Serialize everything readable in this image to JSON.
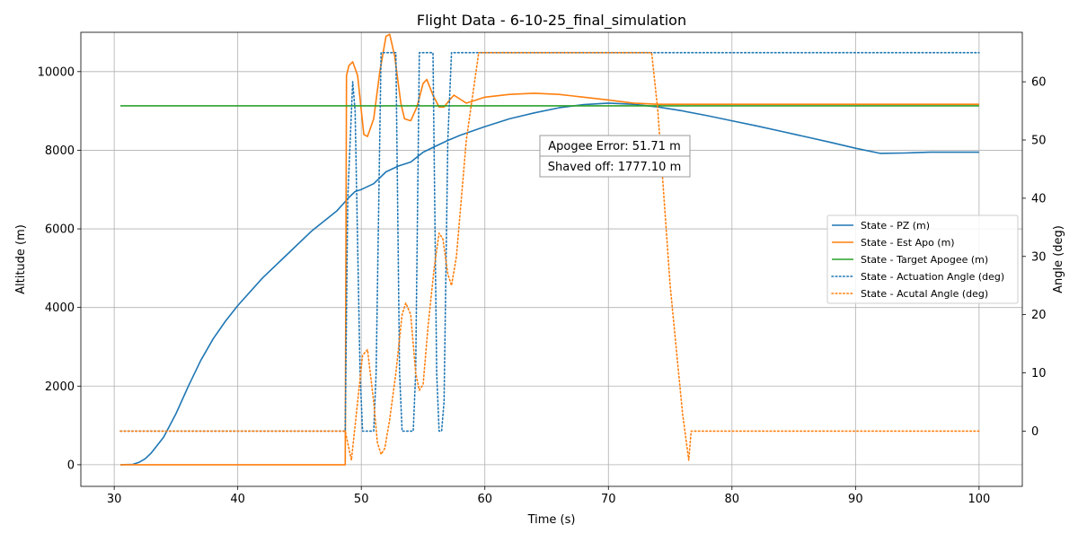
{
  "chart_data": {
    "type": "line",
    "title": "Flight Data - 6-10-25_final_simulation",
    "xlabel": "Time (s)",
    "ylabel": "Altitude (m)",
    "y2label": "Angle (deg)",
    "xlim": [
      27.3,
      103.5
    ],
    "ylim": [
      -550,
      11000
    ],
    "y2lim": [
      -9.5,
      68.5
    ],
    "xticks": [
      30,
      40,
      50,
      60,
      70,
      80,
      90,
      100
    ],
    "yticks": [
      0,
      2000,
      4000,
      6000,
      8000,
      10000
    ],
    "y2ticks": [
      0,
      10,
      20,
      30,
      40,
      50,
      60
    ],
    "grid": true,
    "legend_position": "center-right",
    "annotations": [
      {
        "text": "Apogee Error: 51.71 m"
      },
      {
        "text": "Shaved off: 1777.10 m"
      }
    ],
    "series": [
      {
        "name": "State - PZ (m)",
        "axis": "left",
        "color": "#1f77b4",
        "style": "solid",
        "points": [
          [
            30.5,
            0
          ],
          [
            31.5,
            10
          ],
          [
            32,
            60
          ],
          [
            32.5,
            150
          ],
          [
            33,
            300
          ],
          [
            34,
            700
          ],
          [
            35,
            1300
          ],
          [
            36,
            2000
          ],
          [
            37,
            2650
          ],
          [
            38,
            3200
          ],
          [
            39,
            3650
          ],
          [
            40,
            4050
          ],
          [
            42,
            4750
          ],
          [
            44,
            5350
          ],
          [
            46,
            5950
          ],
          [
            48,
            6450
          ],
          [
            49,
            6800
          ],
          [
            49.5,
            6950
          ],
          [
            50,
            7000
          ],
          [
            51,
            7150
          ],
          [
            52,
            7450
          ],
          [
            53,
            7600
          ],
          [
            54,
            7700
          ],
          [
            55,
            7950
          ],
          [
            56,
            8100
          ],
          [
            57,
            8250
          ],
          [
            58,
            8380
          ],
          [
            60,
            8600
          ],
          [
            62,
            8800
          ],
          [
            64,
            8950
          ],
          [
            66,
            9080
          ],
          [
            68,
            9160
          ],
          [
            70,
            9200
          ],
          [
            72,
            9170
          ],
          [
            74,
            9100
          ],
          [
            76,
            9000
          ],
          [
            78,
            8880
          ],
          [
            80,
            8750
          ],
          [
            82,
            8620
          ],
          [
            84,
            8480
          ],
          [
            86,
            8340
          ],
          [
            88,
            8200
          ],
          [
            90,
            8050
          ],
          [
            92,
            7920
          ],
          [
            94,
            7930
          ],
          [
            96,
            7950
          ],
          [
            98,
            7950
          ],
          [
            100,
            7950
          ]
        ]
      },
      {
        "name": "State - Est Apo (m)",
        "axis": "left",
        "color": "#ff7f0e",
        "style": "solid",
        "points": [
          [
            30.5,
            0
          ],
          [
            48.7,
            0
          ],
          [
            48.8,
            9900
          ],
          [
            49,
            10150
          ],
          [
            49.3,
            10250
          ],
          [
            49.7,
            9900
          ],
          [
            50.2,
            8400
          ],
          [
            50.5,
            8350
          ],
          [
            51,
            8800
          ],
          [
            51.5,
            10000
          ],
          [
            52,
            10900
          ],
          [
            52.3,
            10950
          ],
          [
            52.7,
            10400
          ],
          [
            53.2,
            9200
          ],
          [
            53.5,
            8800
          ],
          [
            54,
            8750
          ],
          [
            54.5,
            9100
          ],
          [
            55,
            9700
          ],
          [
            55.3,
            9800
          ],
          [
            55.8,
            9400
          ],
          [
            56.3,
            9100
          ],
          [
            56.7,
            9100
          ],
          [
            57.2,
            9300
          ],
          [
            57.5,
            9400
          ],
          [
            58,
            9300
          ],
          [
            58.5,
            9200
          ],
          [
            59,
            9250
          ],
          [
            60,
            9350
          ],
          [
            62,
            9420
          ],
          [
            64,
            9450
          ],
          [
            66,
            9420
          ],
          [
            68,
            9350
          ],
          [
            70,
            9280
          ],
          [
            72,
            9200
          ],
          [
            74,
            9170
          ],
          [
            76,
            9170
          ],
          [
            80,
            9170
          ],
          [
            90,
            9170
          ],
          [
            100,
            9170
          ]
        ]
      },
      {
        "name": "State - Target Apogee (m)",
        "axis": "left",
        "color": "#2ca02c",
        "style": "solid",
        "points": [
          [
            30.5,
            9130
          ],
          [
            100,
            9130
          ]
        ]
      },
      {
        "name": "State - Actuation Angle (deg)",
        "axis": "right",
        "color": "#1f77b4",
        "style": "dotted",
        "points": [
          [
            30.5,
            0
          ],
          [
            48.7,
            0
          ],
          [
            48.9,
            40
          ],
          [
            49.3,
            60
          ],
          [
            49.5,
            55
          ],
          [
            49.9,
            10
          ],
          [
            50.1,
            0
          ],
          [
            51,
            0
          ],
          [
            51.2,
            10
          ],
          [
            51.6,
            65
          ],
          [
            52.8,
            65
          ],
          [
            53.1,
            10
          ],
          [
            53.3,
            0
          ],
          [
            54.2,
            0
          ],
          [
            54.4,
            10
          ],
          [
            54.7,
            65
          ],
          [
            55.8,
            65
          ],
          [
            56.1,
            10
          ],
          [
            56.3,
            0
          ],
          [
            56.5,
            0
          ],
          [
            56.7,
            5
          ],
          [
            57,
            50
          ],
          [
            57.3,
            65
          ],
          [
            100,
            65
          ]
        ]
      },
      {
        "name": "State - Acutal Angle (deg)",
        "axis": "right",
        "color": "#ff7f0e",
        "style": "dotted",
        "points": [
          [
            30.5,
            0
          ],
          [
            48.7,
            0
          ],
          [
            49.2,
            -5
          ],
          [
            49.6,
            3
          ],
          [
            50.1,
            13
          ],
          [
            50.5,
            14
          ],
          [
            51,
            5
          ],
          [
            51.3,
            -2
          ],
          [
            51.6,
            -4
          ],
          [
            51.9,
            -3
          ],
          [
            52.3,
            2
          ],
          [
            52.8,
            10
          ],
          [
            53.3,
            20
          ],
          [
            53.6,
            22
          ],
          [
            54,
            20
          ],
          [
            54.4,
            10
          ],
          [
            54.7,
            7
          ],
          [
            55,
            8
          ],
          [
            55.4,
            18
          ],
          [
            55.9,
            28
          ],
          [
            56.3,
            34
          ],
          [
            56.6,
            33
          ],
          [
            57,
            27
          ],
          [
            57.3,
            25
          ],
          [
            57.7,
            30
          ],
          [
            58.5,
            50
          ],
          [
            59.5,
            65
          ],
          [
            73.5,
            65
          ],
          [
            74,
            55
          ],
          [
            75,
            25
          ],
          [
            76,
            3
          ],
          [
            76.5,
            -5
          ],
          [
            76.7,
            0
          ],
          [
            100,
            0
          ]
        ]
      }
    ]
  }
}
